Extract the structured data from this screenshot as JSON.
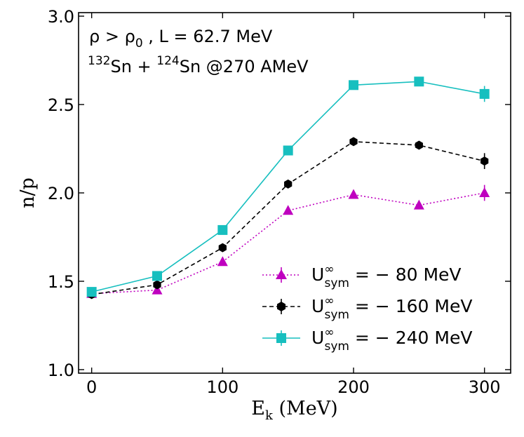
{
  "chart_data": {
    "type": "line",
    "xlabel_main": "E",
    "xlabel_sub": "k",
    "xlabel_unit": "(MeV)",
    "ylabel": "n/p",
    "xlim": [
      -10,
      320
    ],
    "ylim": [
      0.98,
      3.02
    ],
    "xticks": [
      0,
      100,
      200,
      300
    ],
    "xtick_labels": [
      "0",
      "100",
      "200",
      "300"
    ],
    "yticks": [
      1.0,
      1.5,
      2.0,
      2.5,
      3.0
    ],
    "ytick_labels": [
      "1.0",
      "1.5",
      "2.0",
      "2.5",
      "3.0"
    ],
    "x": [
      0,
      50,
      100,
      150,
      200,
      250,
      300
    ],
    "annotations": {
      "line1_rho": "ρ > ρ",
      "line1_rho_sub": "0",
      "line1_rest": " ,  L = 62.7 MeV",
      "line2_sup1": "132",
      "line2_a": "Sn + ",
      "line2_sup2": "124",
      "line2_b": "Sn @270 AMeV"
    },
    "legend_position": "lower-right",
    "series": [
      {
        "name": "U∞sym = −80 MeV",
        "legend_main": "U",
        "legend_sup": "∞",
        "legend_sub": "sym",
        "legend_rest": " = − 80 MeV",
        "marker": "triangle",
        "linestyle": "dotted",
        "color": "#bf00bf",
        "values": [
          1.43,
          1.45,
          1.61,
          1.9,
          1.99,
          1.93,
          2.0
        ],
        "errors": [
          0.01,
          0.015,
          0.015,
          0.015,
          0.02,
          0.02,
          0.045
        ]
      },
      {
        "name": "U∞sym = −160 MeV",
        "legend_main": "U",
        "legend_sup": "∞",
        "legend_sub": "sym",
        "legend_rest": " = − 160 MeV",
        "marker": "hexagon",
        "linestyle": "dashed",
        "color": "#000000",
        "values": [
          1.425,
          1.48,
          1.69,
          2.05,
          2.29,
          2.27,
          2.18
        ],
        "errors": [
          0.01,
          0.015,
          0.015,
          0.015,
          0.02,
          0.02,
          0.045
        ]
      },
      {
        "name": "U∞sym = −240 MeV",
        "legend_main": "U",
        "legend_sup": "∞",
        "legend_sub": "sym",
        "legend_rest": " = − 240 MeV",
        "marker": "square",
        "linestyle": "solid",
        "color": "#17bfbf",
        "values": [
          1.44,
          1.53,
          1.79,
          2.24,
          2.61,
          2.63,
          2.56
        ],
        "errors": [
          0.01,
          0.015,
          0.015,
          0.015,
          0.02,
          0.02,
          0.045
        ]
      }
    ]
  }
}
